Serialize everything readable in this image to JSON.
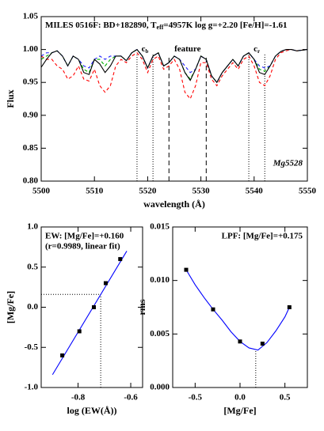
{
  "chart_data": [
    {
      "type": "line",
      "title_parts": [
        "MILES 0516F: BD+182890, T",
        "eff",
        "=4957K log g=+2.20 [Fe/H]=-1.61"
      ],
      "xlabel": "wavelength (Å)",
      "ylabel": "Flux",
      "annotation": "Mg5528",
      "xlim": [
        5500,
        5550
      ],
      "ylim": [
        0.8,
        1.05
      ],
      "xticks": [
        5500,
        5510,
        5520,
        5530,
        5540,
        5550
      ],
      "yticks": [
        {
          "value": 0.8,
          "label": "0.80"
        },
        0.85,
        {
          "value": 0.9,
          "label": "0.90"
        },
        0.95,
        {
          "value": 1.0,
          "label": "1.00"
        },
        1.05
      ],
      "bands": [
        {
          "label": "c",
          "sub": "b",
          "lines": [
            5518,
            5521
          ],
          "style": "dotted"
        },
        {
          "label": "feature",
          "lines": [
            5524,
            5531
          ],
          "style": "dashed"
        },
        {
          "label": "c",
          "sub": "r",
          "lines": [
            5539,
            5542
          ],
          "style": "dotted"
        }
      ],
      "x": [
        5500,
        5501,
        5502,
        5503,
        5504,
        5505,
        5506,
        5507,
        5508,
        5509,
        5510,
        5511,
        5512,
        5513,
        5514,
        5515,
        5516,
        5517,
        5518,
        5519,
        5520,
        5521,
        5522,
        5523,
        5524,
        5525,
        5526,
        5527,
        5528,
        5529,
        5530,
        5531,
        5532,
        5533,
        5534,
        5535,
        5536,
        5537,
        5538,
        5539,
        5540,
        5541,
        5542,
        5543,
        5544,
        5545,
        5546,
        5547,
        5548,
        5549,
        5550
      ],
      "series": [
        {
          "color": "#ff0000",
          "dash": true,
          "values": [
            0.99,
            0.985,
            0.985,
            0.975,
            0.97,
            0.955,
            0.96,
            0.975,
            0.955,
            0.952,
            0.97,
            0.945,
            0.935,
            0.945,
            0.975,
            0.985,
            0.98,
            0.99,
            0.995,
            0.985,
            0.965,
            0.985,
            0.99,
            0.97,
            0.975,
            0.985,
            0.97,
            0.935,
            0.925,
            0.945,
            0.98,
            0.98,
            0.955,
            0.945,
            0.96,
            0.97,
            0.98,
            0.97,
            0.985,
            0.99,
            0.975,
            0.95,
            0.945,
            0.96,
            0.985,
            0.995,
            0.998,
            1.0,
            0.998,
            0.999,
            1.0
          ]
        },
        {
          "color": "#00b000",
          "dash": true,
          "values": [
            0.985,
            0.99,
            0.995,
            0.998,
            0.99,
            0.975,
            0.99,
            0.985,
            0.97,
            0.965,
            0.985,
            0.985,
            0.975,
            0.985,
            0.99,
            0.99,
            0.983,
            0.995,
            1.0,
            0.99,
            0.972,
            0.99,
            0.995,
            0.975,
            0.98,
            0.99,
            0.985,
            0.965,
            0.955,
            0.97,
            0.99,
            0.985,
            0.96,
            0.95,
            0.965,
            0.975,
            0.985,
            0.975,
            0.99,
            0.995,
            0.985,
            0.97,
            0.967,
            0.975,
            0.99,
            0.997,
            1.0,
            1.0,
            0.998,
            0.999,
            1.0
          ]
        },
        {
          "color": "#2020ff",
          "dash": true,
          "values": [
            0.99,
            0.995,
            0.995,
            0.998,
            0.99,
            0.975,
            0.99,
            0.985,
            0.975,
            0.972,
            0.985,
            0.99,
            0.985,
            0.99,
            0.99,
            0.99,
            0.983,
            0.995,
            1.0,
            0.99,
            0.972,
            0.99,
            0.995,
            0.975,
            0.98,
            0.99,
            0.985,
            0.975,
            0.965,
            0.97,
            0.99,
            0.985,
            0.96,
            0.95,
            0.965,
            0.975,
            0.985,
            0.975,
            0.99,
            0.995,
            0.985,
            0.975,
            0.972,
            0.975,
            0.99,
            0.997,
            1.0,
            1.0,
            0.998,
            0.999,
            1.0
          ]
        },
        {
          "color": "#000000",
          "dash": false,
          "values": [
            0.973,
            0.985,
            0.995,
            0.998,
            0.99,
            0.975,
            0.99,
            0.985,
            0.965,
            0.962,
            0.985,
            0.978,
            0.965,
            0.975,
            0.99,
            0.99,
            0.983,
            0.995,
            1.0,
            0.99,
            0.972,
            0.99,
            0.995,
            0.975,
            0.98,
            0.99,
            0.985,
            0.965,
            0.953,
            0.97,
            0.99,
            0.985,
            0.96,
            0.95,
            0.965,
            0.975,
            0.985,
            0.975,
            0.99,
            0.995,
            0.985,
            0.965,
            0.962,
            0.975,
            0.99,
            0.997,
            1.0,
            1.0,
            0.998,
            0.999,
            1.0
          ]
        }
      ]
    },
    {
      "type": "scatter",
      "texts": [
        "EW: [Mg/Fe]=+0.160",
        "(r=0.9989, linear fit)"
      ],
      "text_corner": "upper left",
      "xlabel": "log (EW(Å))",
      "ylabel": "[Mg/Fe]",
      "xlim": [
        -0.94,
        -0.555
      ],
      "ylim": [
        -1.0,
        1.0
      ],
      "xticks": [
        -0.8,
        -0.6
      ],
      "yticks": [
        {
          "value": -1.0,
          "label": "-1.0"
        },
        -0.5,
        {
          "value": 0.0,
          "label": "0.0"
        },
        0.5,
        {
          "value": 1.0,
          "label": "1.0"
        }
      ],
      "guide": {
        "x": -0.714,
        "y": 0.16,
        "horizontal": true
      },
      "series": [
        {
          "mode": "line",
          "color": "#0000ff",
          "x": [
            -0.897,
            -0.615
          ],
          "values": [
            -0.84,
            0.7
          ]
        },
        {
          "mode": "markers",
          "color": "#000000",
          "x": [
            -0.86,
            -0.795,
            -0.74,
            -0.695,
            -0.64
          ],
          "values": [
            -0.6,
            -0.3,
            0.0,
            0.3,
            0.6
          ]
        }
      ]
    },
    {
      "type": "scatter",
      "texts": [
        "LPF: [Mg/Fe]=+0.175"
      ],
      "text_corner": "upper right",
      "xlabel": "[Mg/Fe]",
      "ylabel": "rms",
      "xlim": [
        -0.75,
        0.75
      ],
      "ylim": [
        0.0,
        0.015
      ],
      "xticks": [
        -0.5,
        {
          "value": 0.0,
          "label": "0.0"
        },
        0.5
      ],
      "yticks": [
        {
          "value": 0.0,
          "label": "0.000"
        },
        0.005,
        {
          "value": 0.01,
          "label": "0.010"
        },
        0.015
      ],
      "guide": {
        "x": 0.175,
        "y": 0.0035,
        "horizontal": false
      },
      "series": [
        {
          "mode": "line",
          "color": "#0000ff",
          "x": [
            -0.6,
            -0.5,
            -0.4,
            -0.3,
            -0.2,
            -0.1,
            0.0,
            0.1,
            0.2,
            0.3,
            0.4,
            0.5,
            0.55
          ],
          "values": [
            0.011,
            0.0096,
            0.0084,
            0.0073,
            0.0063,
            0.0052,
            0.0043,
            0.0037,
            0.0035,
            0.0042,
            0.0053,
            0.0066,
            0.0075
          ]
        },
        {
          "mode": "markers",
          "color": "#000000",
          "x": [
            -0.6,
            -0.3,
            0.0,
            0.25,
            0.55
          ],
          "values": [
            0.011,
            0.0073,
            0.0043,
            0.0041,
            0.0075
          ]
        }
      ]
    }
  ]
}
